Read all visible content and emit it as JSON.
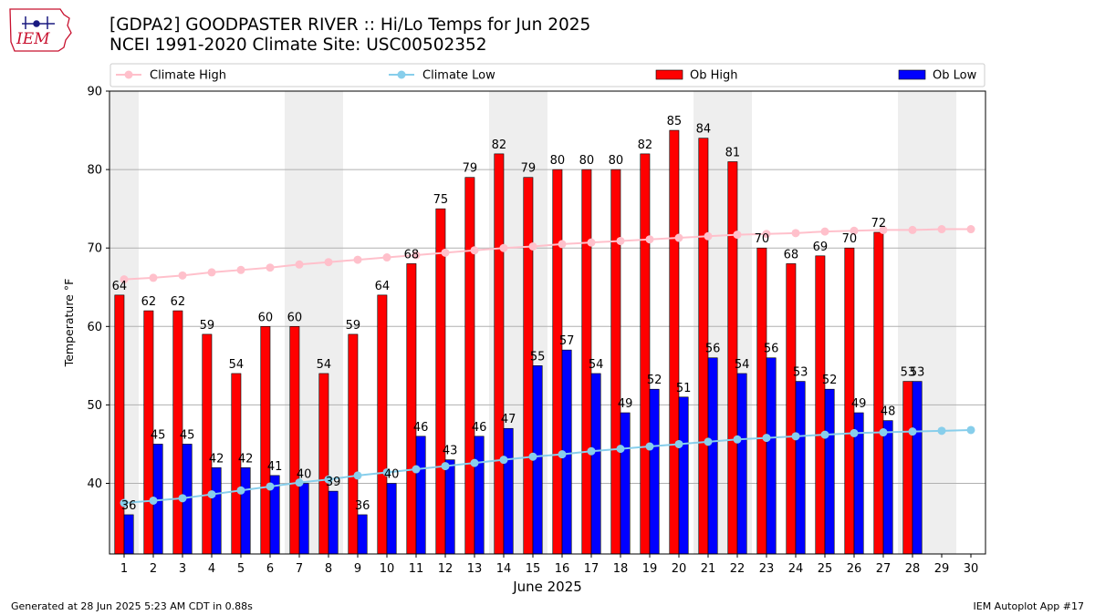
{
  "header": {
    "title": "[GDPA2] GOODPASTER RIVER :: Hi/Lo Temps for Jun 2025",
    "subtitle": "NCEI 1991-2020 Climate Site: USC00502352"
  },
  "logo": {
    "text": "IEM",
    "icon": "iem-iowa-logo"
  },
  "footer": {
    "generated": "Generated at 28 Jun 2025 5:23 AM CDT in 0.88s",
    "app": "IEM Autoplot App #17"
  },
  "colors": {
    "ob_high": "#ff0000",
    "ob_low": "#0000ff",
    "climate_high": "#ffc0cb",
    "climate_low": "#87ceeb",
    "weekend_shade": "#eeeeee",
    "grid": "#b0b0b0"
  },
  "chart_data": {
    "type": "bar",
    "title": "",
    "xlabel": "June 2025",
    "ylabel": "Temperature °F",
    "ylim": [
      31,
      90
    ],
    "yticks": [
      40,
      50,
      60,
      70,
      80,
      90
    ],
    "grid": "horizontal",
    "legend_position": "top",
    "categories": [
      "1",
      "2",
      "3",
      "4",
      "5",
      "6",
      "7",
      "8",
      "9",
      "10",
      "11",
      "12",
      "13",
      "14",
      "15",
      "16",
      "17",
      "18",
      "19",
      "20",
      "21",
      "22",
      "23",
      "24",
      "25",
      "26",
      "27",
      "28",
      "29",
      "30"
    ],
    "shaded_days": [
      1,
      7,
      8,
      14,
      15,
      21,
      22,
      28,
      29
    ],
    "series": [
      {
        "name": "Climate High",
        "kind": "line",
        "values": [
          66.0,
          66.2,
          66.5,
          66.9,
          67.2,
          67.5,
          67.9,
          68.2,
          68.5,
          68.8,
          69.1,
          69.4,
          69.7,
          70.0,
          70.2,
          70.5,
          70.7,
          70.9,
          71.1,
          71.3,
          71.5,
          71.7,
          71.8,
          71.9,
          72.1,
          72.2,
          72.3,
          72.3,
          72.4,
          72.4
        ]
      },
      {
        "name": "Climate Low",
        "kind": "line",
        "values": [
          37.5,
          37.8,
          38.1,
          38.6,
          39.1,
          39.6,
          40.1,
          40.5,
          41.0,
          41.4,
          41.8,
          42.2,
          42.6,
          43.0,
          43.4,
          43.7,
          44.1,
          44.4,
          44.7,
          45.0,
          45.3,
          45.6,
          45.8,
          46.0,
          46.2,
          46.4,
          46.5,
          46.6,
          46.7,
          46.8
        ]
      },
      {
        "name": "Ob High",
        "kind": "bar",
        "values": [
          64,
          62,
          62,
          59,
          54,
          60,
          60,
          54,
          59,
          64,
          68,
          75,
          79,
          82,
          79,
          80,
          80,
          80,
          82,
          85,
          84,
          81,
          70,
          68,
          69,
          70,
          72,
          53,
          null,
          null
        ]
      },
      {
        "name": "Ob Low",
        "kind": "bar",
        "values": [
          36,
          45,
          45,
          42,
          42,
          41,
          40,
          39,
          36,
          40,
          46,
          43,
          46,
          47,
          55,
          57,
          54,
          49,
          52,
          51,
          56,
          54,
          56,
          53,
          52,
          49,
          48,
          53,
          null,
          null
        ]
      }
    ]
  }
}
